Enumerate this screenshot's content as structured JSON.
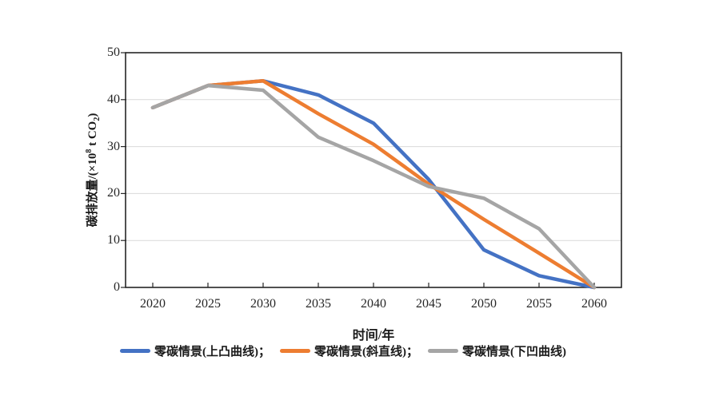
{
  "figure": {
    "background": "#ffffff",
    "axis_color": "#262626",
    "gridline_color": "#d9d9d9",
    "tick_color": "#262626"
  },
  "chart_data": {
    "type": "line",
    "title": "",
    "xlabel": "时间/年",
    "ylabel": "碳排放量/(×10⁸ t CO₂)",
    "ylabel_parts": {
      "prefix": "碳排放量/(×10",
      "sup": "8",
      "mid": " t CO",
      "sub": "2",
      "suffix": ")"
    },
    "x": [
      2020,
      2025,
      2030,
      2035,
      2040,
      2045,
      2050,
      2055,
      2060
    ],
    "xtick_labels": [
      "2020",
      "2025",
      "2030",
      "2035",
      "2040",
      "2045",
      "2050",
      "2055",
      "2060"
    ],
    "yticks": [
      0,
      10,
      20,
      30,
      40,
      50
    ],
    "ylim": [
      0,
      50
    ],
    "grid": "horizontal-only",
    "legend_position": "bottom-center",
    "series": [
      {
        "name": "零碳情景(上凸曲线)",
        "color": "#4472C4",
        "values": [
          38.3,
          43,
          44,
          41,
          35,
          23,
          8,
          2.5,
          0
        ]
      },
      {
        "name": "零碳情景(斜直线)",
        "color": "#ED7D31",
        "values": [
          38.3,
          43,
          44,
          37,
          30.5,
          22,
          14.5,
          7.3,
          0
        ]
      },
      {
        "name": "零碳情景(下凹曲线)",
        "color": "#A5A5A5",
        "values": [
          38.3,
          43,
          42,
          32,
          27,
          21.5,
          19,
          12.5,
          0
        ]
      }
    ]
  },
  "legend": {
    "items": [
      {
        "label": "零碳情景(上凸曲线)；",
        "color": "#4472C4"
      },
      {
        "label": "零碳情景(斜直线)；",
        "color": "#ED7D31"
      },
      {
        "label": "零碳情景(下凹曲线)",
        "color": "#A5A5A5"
      }
    ]
  }
}
